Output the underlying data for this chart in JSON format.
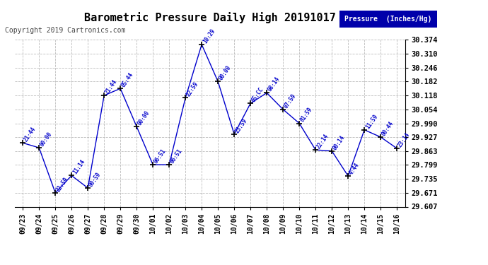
{
  "title": "Barometric Pressure Daily High 20191017",
  "copyright": "Copyright 2019 Cartronics.com",
  "legend_label": "Pressure  (Inches/Hg)",
  "x_labels": [
    "09/23",
    "09/24",
    "09/25",
    "09/26",
    "09/27",
    "09/28",
    "09/29",
    "09/30",
    "10/01",
    "10/02",
    "10/03",
    "10/04",
    "10/05",
    "10/06",
    "10/07",
    "10/08",
    "10/09",
    "10/10",
    "10/11",
    "10/12",
    "10/13",
    "10/14",
    "10/15",
    "10/16"
  ],
  "y_values": [
    29.9,
    29.878,
    29.671,
    29.75,
    29.693,
    30.118,
    30.15,
    29.975,
    29.8,
    29.8,
    30.107,
    30.352,
    30.182,
    29.94,
    30.082,
    30.13,
    30.054,
    29.99,
    29.868,
    29.863,
    29.748,
    29.96,
    29.927,
    29.875
  ],
  "point_labels": [
    "21:44",
    "00:00",
    "22:59",
    "11:14",
    "00:59",
    "21:44",
    "05:44",
    "00:00",
    "06:51",
    "06:51",
    "22:59",
    "10:29",
    "00:00",
    "23:59",
    "65:CC",
    "08:14",
    "07:59",
    "01:59",
    "22:14",
    "00:14",
    "4:44",
    "11:59",
    "00:44",
    "23:14"
  ],
  "ylim": [
    29.607,
    30.374
  ],
  "yticks": [
    29.607,
    29.671,
    29.735,
    29.799,
    29.863,
    29.927,
    29.99,
    30.054,
    30.118,
    30.182,
    30.246,
    30.31,
    30.374
  ],
  "line_color": "#0000CC",
  "marker_color": "#000000",
  "bg_color": "#ffffff",
  "grid_color": "#aaaaaa",
  "text_color": "#0000CC",
  "title_color": "#000000",
  "legend_bg": "#0000AA",
  "legend_text": "#ffffff"
}
